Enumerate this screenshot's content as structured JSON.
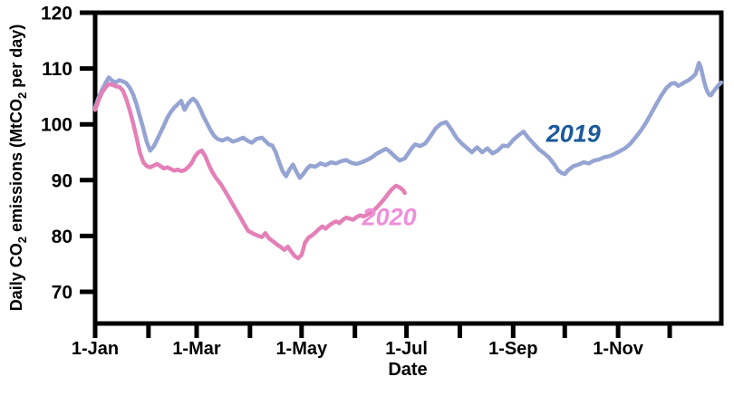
{
  "figure": {
    "background": "#ffffff",
    "axis_color": "#000000",
    "ylabel_parts": [
      {
        "text": "Daily CO",
        "sub": false
      },
      {
        "text": "2",
        "sub": true
      },
      {
        "text": " emissions (MtCO",
        "sub": false
      },
      {
        "text": "2",
        "sub": true
      },
      {
        "text": " per day)",
        "sub": false
      }
    ]
  },
  "chart_data": {
    "type": "line",
    "title": "",
    "xlabel": "Date",
    "ylabel": "Daily CO2 emissions (MtCO2 per day)",
    "x_unit": "day-of-year",
    "xlim_days": [
      1,
      365
    ],
    "ylim": [
      64,
      120
    ],
    "grid": false,
    "legend": "inline-labels",
    "y_ticks": [
      120,
      110,
      100,
      90,
      80,
      70
    ],
    "x_ticks": [
      {
        "day": 1,
        "label": "1-Jan"
      },
      {
        "day": 32,
        "label": ""
      },
      {
        "day": 60,
        "label": "1-Mar"
      },
      {
        "day": 91,
        "label": ""
      },
      {
        "day": 121,
        "label": "1-May"
      },
      {
        "day": 152,
        "label": ""
      },
      {
        "day": 182,
        "label": "1-Jul"
      },
      {
        "day": 213,
        "label": ""
      },
      {
        "day": 244,
        "label": "1-Sep"
      },
      {
        "day": 274,
        "label": ""
      },
      {
        "day": 305,
        "label": "1-Nov"
      },
      {
        "day": 335,
        "label": ""
      }
    ],
    "series": [
      {
        "name": "2019",
        "color": "#95a4d2",
        "label_color": "#1a5a9c",
        "label_day": 279,
        "label_value": 98.3,
        "points": [
          [
            1,
            103.0
          ],
          [
            3,
            104.8
          ],
          [
            5,
            106.2
          ],
          [
            7,
            107.4
          ],
          [
            9,
            108.4
          ],
          [
            11,
            107.8
          ],
          [
            13,
            107.5
          ],
          [
            15,
            107.9
          ],
          [
            17,
            107.7
          ],
          [
            19,
            107.4
          ],
          [
            21,
            106.6
          ],
          [
            23,
            105.4
          ],
          [
            25,
            103.6
          ],
          [
            27,
            101.4
          ],
          [
            29,
            99.2
          ],
          [
            31,
            96.8
          ],
          [
            33,
            95.3
          ],
          [
            35,
            96.0
          ],
          [
            37,
            97.2
          ],
          [
            39,
            98.5
          ],
          [
            41,
            99.8
          ],
          [
            43,
            101.2
          ],
          [
            45,
            102.2
          ],
          [
            47,
            103.0
          ],
          [
            49,
            103.6
          ],
          [
            51,
            104.2
          ],
          [
            53,
            102.6
          ],
          [
            55,
            103.7
          ],
          [
            57,
            104.4
          ],
          [
            58,
            104.6
          ],
          [
            60,
            104.0
          ],
          [
            62,
            102.8
          ],
          [
            64,
            101.4
          ],
          [
            66,
            100.2
          ],
          [
            68,
            99.0
          ],
          [
            70,
            98.0
          ],
          [
            72,
            97.4
          ],
          [
            75,
            97.1
          ],
          [
            78,
            97.5
          ],
          [
            81,
            96.9
          ],
          [
            84,
            97.2
          ],
          [
            87,
            97.6
          ],
          [
            90,
            97.0
          ],
          [
            92,
            96.7
          ],
          [
            95,
            97.4
          ],
          [
            98,
            97.6
          ],
          [
            100,
            97.0
          ],
          [
            102,
            96.4
          ],
          [
            104,
            96.2
          ],
          [
            106,
            95.0
          ],
          [
            108,
            93.2
          ],
          [
            110,
            91.6
          ],
          [
            112,
            90.7
          ],
          [
            114,
            91.9
          ],
          [
            116,
            92.8
          ],
          [
            118,
            91.5
          ],
          [
            120,
            90.4
          ],
          [
            122,
            91.1
          ],
          [
            124,
            92.0
          ],
          [
            126,
            92.6
          ],
          [
            129,
            92.4
          ],
          [
            132,
            93.0
          ],
          [
            135,
            92.7
          ],
          [
            138,
            93.2
          ],
          [
            141,
            93.0
          ],
          [
            144,
            93.4
          ],
          [
            147,
            93.6
          ],
          [
            150,
            93.1
          ],
          [
            153,
            92.9
          ],
          [
            156,
            93.2
          ],
          [
            159,
            93.6
          ],
          [
            162,
            94.1
          ],
          [
            165,
            94.8
          ],
          [
            168,
            95.3
          ],
          [
            170,
            95.6
          ],
          [
            172,
            95.2
          ],
          [
            175,
            94.3
          ],
          [
            178,
            93.5
          ],
          [
            181,
            93.9
          ],
          [
            183,
            94.8
          ],
          [
            185,
            95.7
          ],
          [
            187,
            96.4
          ],
          [
            190,
            96.1
          ],
          [
            193,
            96.6
          ],
          [
            196,
            97.9
          ],
          [
            199,
            99.3
          ],
          [
            202,
            100.1
          ],
          [
            205,
            100.4
          ],
          [
            208,
            99.1
          ],
          [
            211,
            97.6
          ],
          [
            214,
            96.6
          ],
          [
            217,
            95.8
          ],
          [
            220,
            95.0
          ],
          [
            223,
            95.9
          ],
          [
            226,
            95.0
          ],
          [
            229,
            95.7
          ],
          [
            232,
            94.8
          ],
          [
            235,
            95.3
          ],
          [
            238,
            96.2
          ],
          [
            241,
            96.1
          ],
          [
            244,
            97.2
          ],
          [
            247,
            98.0
          ],
          [
            250,
            98.7
          ],
          [
            253,
            97.5
          ],
          [
            256,
            96.5
          ],
          [
            259,
            95.5
          ],
          [
            262,
            94.8
          ],
          [
            265,
            94.0
          ],
          [
            268,
            92.8
          ],
          [
            270,
            91.8
          ],
          [
            272,
            91.3
          ],
          [
            274,
            91.1
          ],
          [
            276,
            91.8
          ],
          [
            279,
            92.5
          ],
          [
            282,
            92.8
          ],
          [
            285,
            93.2
          ],
          [
            288,
            93.0
          ],
          [
            291,
            93.5
          ],
          [
            294,
            93.7
          ],
          [
            297,
            94.1
          ],
          [
            300,
            94.3
          ],
          [
            303,
            94.7
          ],
          [
            306,
            95.2
          ],
          [
            309,
            95.7
          ],
          [
            312,
            96.5
          ],
          [
            315,
            97.6
          ],
          [
            318,
            98.8
          ],
          [
            321,
            100.2
          ],
          [
            324,
            101.8
          ],
          [
            327,
            103.5
          ],
          [
            330,
            105.1
          ],
          [
            333,
            106.5
          ],
          [
            336,
            107.3
          ],
          [
            338,
            107.4
          ],
          [
            340,
            106.9
          ],
          [
            342,
            107.2
          ],
          [
            344,
            107.6
          ],
          [
            346,
            107.9
          ],
          [
            348,
            108.4
          ],
          [
            350,
            109.0
          ],
          [
            351,
            110.0
          ],
          [
            352,
            111.0
          ],
          [
            353,
            110.3
          ],
          [
            354,
            109.0
          ],
          [
            355,
            107.7
          ],
          [
            356,
            106.6
          ],
          [
            357,
            105.8
          ],
          [
            358,
            105.3
          ],
          [
            359,
            105.2
          ],
          [
            360,
            105.7
          ],
          [
            361,
            106.1
          ],
          [
            362,
            106.5
          ],
          [
            363,
            106.9
          ],
          [
            364,
            107.2
          ],
          [
            365,
            107.5
          ]
        ]
      },
      {
        "name": "2020",
        "color": "#e480b8",
        "label_color": "#ee8fd9",
        "label_day": 172,
        "label_value": 83.4,
        "points": [
          [
            1,
            102.6
          ],
          [
            3,
            104.3
          ],
          [
            5,
            105.7
          ],
          [
            7,
            106.6
          ],
          [
            9,
            107.2
          ],
          [
            11,
            107.1
          ],
          [
            13,
            106.8
          ],
          [
            15,
            106.7
          ],
          [
            17,
            106.1
          ],
          [
            19,
            104.6
          ],
          [
            21,
            102.6
          ],
          [
            23,
            100.3
          ],
          [
            25,
            97.7
          ],
          [
            27,
            94.9
          ],
          [
            29,
            93.2
          ],
          [
            31,
            92.5
          ],
          [
            33,
            92.3
          ],
          [
            35,
            92.6
          ],
          [
            37,
            92.9
          ],
          [
            39,
            92.5
          ],
          [
            41,
            92.1
          ],
          [
            43,
            92.3
          ],
          [
            45,
            92.0
          ],
          [
            47,
            91.7
          ],
          [
            49,
            91.9
          ],
          [
            51,
            91.6
          ],
          [
            53,
            91.8
          ],
          [
            55,
            92.3
          ],
          [
            57,
            93.0
          ],
          [
            59,
            94.2
          ],
          [
            61,
            95.0
          ],
          [
            63,
            95.3
          ],
          [
            65,
            94.3
          ],
          [
            67,
            92.8
          ],
          [
            69,
            91.5
          ],
          [
            71,
            90.5
          ],
          [
            74,
            89.3
          ],
          [
            77,
            87.8
          ],
          [
            80,
            86.2
          ],
          [
            83,
            84.6
          ],
          [
            86,
            83.0
          ],
          [
            88,
            81.9
          ],
          [
            90,
            80.9
          ],
          [
            93,
            80.4
          ],
          [
            96,
            80.0
          ],
          [
            98,
            79.8
          ],
          [
            100,
            80.5
          ],
          [
            102,
            79.6
          ],
          [
            105,
            78.9
          ],
          [
            107,
            78.4
          ],
          [
            109,
            78.0
          ],
          [
            111,
            77.5
          ],
          [
            113,
            78.1
          ],
          [
            115,
            77.2
          ],
          [
            117,
            76.4
          ],
          [
            119,
            76.0
          ],
          [
            121,
            76.6
          ],
          [
            123,
            78.8
          ],
          [
            125,
            79.7
          ],
          [
            127,
            80.1
          ],
          [
            129,
            80.6
          ],
          [
            131,
            81.2
          ],
          [
            133,
            81.7
          ],
          [
            135,
            81.3
          ],
          [
            137,
            81.9
          ],
          [
            139,
            82.3
          ],
          [
            141,
            82.6
          ],
          [
            143,
            82.3
          ],
          [
            145,
            82.9
          ],
          [
            147,
            83.3
          ],
          [
            149,
            83.1
          ],
          [
            151,
            82.9
          ],
          [
            153,
            83.4
          ],
          [
            155,
            83.7
          ],
          [
            157,
            83.5
          ],
          [
            159,
            83.8
          ],
          [
            161,
            84.1
          ],
          [
            163,
            84.6
          ],
          [
            165,
            85.2
          ],
          [
            167,
            85.9
          ],
          [
            169,
            86.6
          ],
          [
            171,
            87.4
          ],
          [
            173,
            88.2
          ],
          [
            175,
            88.8
          ],
          [
            176,
            89.0
          ],
          [
            178,
            88.7
          ],
          [
            180,
            88.2
          ],
          [
            181,
            87.7
          ]
        ]
      }
    ]
  }
}
